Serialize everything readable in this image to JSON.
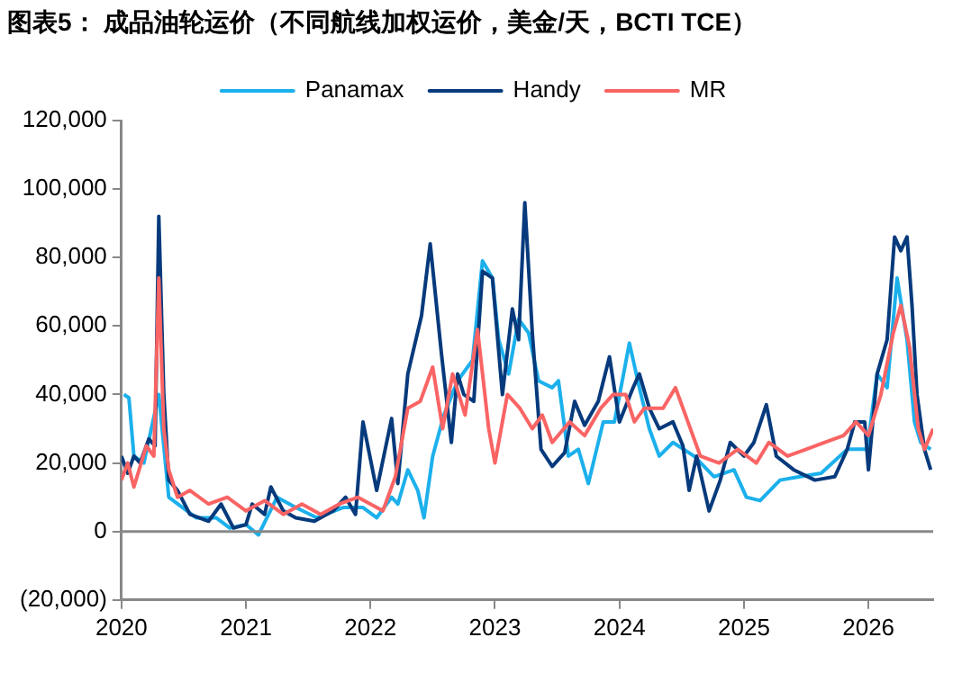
{
  "chart_data": {
    "type": "line",
    "title": "图表5：  成品油轮运价（不同航线加权运价，美金/天，BCTI TCE）",
    "xlim": [
      2020,
      2026.52
    ],
    "xticks": [
      2020,
      2021,
      2022,
      2023,
      2024,
      2025,
      2026
    ],
    "ylim": [
      -20000,
      120000
    ],
    "yticks": [
      {
        "value": -20000,
        "label": "(20,000)"
      },
      {
        "value": 0,
        "label": "0"
      },
      {
        "value": 20000,
        "label": "20,000"
      },
      {
        "value": 40000,
        "label": "40,000"
      },
      {
        "value": 60000,
        "label": "60,000"
      },
      {
        "value": 80000,
        "label": "80,000"
      },
      {
        "value": 100000,
        "label": "100,000"
      },
      {
        "value": 120000,
        "label": "120,000"
      }
    ],
    "grid": false,
    "ref_lines": [
      {
        "axis": "y",
        "value": 0
      }
    ],
    "legend": "top",
    "marker": "none",
    "line_style": "solid",
    "series": [
      {
        "name": "Panamax",
        "color": "#1cb0ec",
        "x": [
          2020.02,
          2020.06,
          2020.1,
          2020.18,
          2020.3,
          2020.38,
          2020.6,
          2020.76,
          2020.87,
          2021.0,
          2021.1,
          2021.25,
          2021.4,
          2021.57,
          2021.78,
          2021.94,
          2022.05,
          2022.17,
          2022.22,
          2022.3,
          2022.38,
          2022.43,
          2022.5,
          2022.59,
          2022.7,
          2022.82,
          2022.9,
          2022.98,
          2023.03,
          2023.11,
          2023.19,
          2023.27,
          2023.35,
          2023.46,
          2023.51,
          2023.59,
          2023.67,
          2023.75,
          2023.87,
          2023.96,
          2024.08,
          2024.16,
          2024.24,
          2024.32,
          2024.43,
          2024.6,
          2024.76,
          2024.92,
          2025.02,
          2025.13,
          2025.29,
          2025.45,
          2025.62,
          2025.83,
          2025.99,
          2026.07,
          2026.15,
          2026.23,
          2026.31,
          2026.37,
          2026.42,
          2026.5
        ],
        "values": [
          40000,
          39000,
          22000,
          20000,
          40000,
          10000,
          4000,
          4000,
          1000,
          2000,
          -1000,
          10000,
          7000,
          4000,
          7000,
          7000,
          4000,
          10000,
          8000,
          18000,
          12000,
          4000,
          22000,
          34000,
          44000,
          50000,
          79000,
          74000,
          56000,
          46000,
          62000,
          58000,
          44000,
          42000,
          44000,
          22000,
          24000,
          14000,
          32000,
          32000,
          55000,
          42000,
          30000,
          22000,
          26000,
          22000,
          16000,
          18000,
          10000,
          9000,
          15000,
          16000,
          17000,
          24000,
          24000,
          46000,
          42000,
          74000,
          56000,
          32000,
          26000,
          24000
        ]
      },
      {
        "name": "Handy",
        "color": "#063a7c",
        "x": [
          2020.0,
          2020.05,
          2020.1,
          2020.15,
          2020.22,
          2020.27,
          2020.3,
          2020.34,
          2020.38,
          2020.45,
          2020.55,
          2020.7,
          2020.8,
          2020.9,
          2021.0,
          2021.05,
          2021.15,
          2021.2,
          2021.3,
          2021.4,
          2021.55,
          2021.7,
          2021.8,
          2021.88,
          2021.94,
          2022.05,
          2022.17,
          2022.22,
          2022.3,
          2022.41,
          2022.48,
          2022.57,
          2022.65,
          2022.7,
          2022.75,
          2022.83,
          2022.9,
          2022.98,
          2023.06,
          2023.14,
          2023.19,
          2023.24,
          2023.3,
          2023.37,
          2023.46,
          2023.56,
          2023.64,
          2023.72,
          2023.83,
          2023.92,
          2024.0,
          2024.11,
          2024.16,
          2024.24,
          2024.32,
          2024.43,
          2024.51,
          2024.56,
          2024.62,
          2024.72,
          2024.81,
          2024.89,
          2025.0,
          2025.08,
          2025.18,
          2025.26,
          2025.4,
          2025.57,
          2025.73,
          2025.83,
          2025.89,
          2025.97,
          2026.0,
          2026.07,
          2026.15,
          2026.21,
          2026.26,
          2026.31,
          2026.35,
          2026.39,
          2026.45,
          2026.5
        ],
        "values": [
          22000,
          17000,
          22000,
          20000,
          27000,
          25000,
          92000,
          40000,
          15000,
          12000,
          5000,
          3000,
          8000,
          1000,
          2000,
          8000,
          5000,
          13000,
          6000,
          4000,
          3000,
          6000,
          10000,
          5000,
          32000,
          12000,
          33000,
          14000,
          46000,
          63000,
          84000,
          52000,
          26000,
          46000,
          40000,
          38000,
          76000,
          74000,
          40000,
          65000,
          56000,
          96000,
          58000,
          24000,
          19000,
          23000,
          38000,
          31000,
          38000,
          51000,
          32000,
          42000,
          46000,
          36000,
          30000,
          32000,
          25000,
          12000,
          22000,
          6000,
          15000,
          26000,
          22000,
          26000,
          37000,
          22000,
          18000,
          15000,
          16000,
          24000,
          32000,
          32000,
          18000,
          46000,
          56000,
          86000,
          82000,
          86000,
          66000,
          40000,
          24000,
          18000
        ]
      },
      {
        "name": "MR",
        "color": "#fa6464",
        "x": [
          2020.0,
          2020.05,
          2020.1,
          2020.2,
          2020.26,
          2020.3,
          2020.34,
          2020.38,
          2020.45,
          2020.55,
          2020.7,
          2020.85,
          2021.0,
          2021.15,
          2021.3,
          2021.45,
          2021.6,
          2021.75,
          2021.9,
          2022.0,
          2022.1,
          2022.2,
          2022.3,
          2022.4,
          2022.5,
          2022.58,
          2022.66,
          2022.76,
          2022.86,
          2022.95,
          2023.0,
          2023.1,
          2023.2,
          2023.3,
          2023.38,
          2023.46,
          2023.6,
          2023.72,
          2023.85,
          2023.95,
          2024.05,
          2024.12,
          2024.2,
          2024.35,
          2024.45,
          2024.55,
          2024.65,
          2024.8,
          2024.95,
          2025.1,
          2025.2,
          2025.35,
          2025.5,
          2025.65,
          2025.8,
          2025.9,
          2026.0,
          2026.1,
          2026.2,
          2026.26,
          2026.33,
          2026.4,
          2026.45,
          2026.52
        ],
        "values": [
          15000,
          20000,
          13000,
          25000,
          22000,
          74000,
          30000,
          18000,
          10000,
          12000,
          8000,
          10000,
          6000,
          9000,
          5000,
          8000,
          5000,
          8000,
          10000,
          8000,
          6000,
          16000,
          36000,
          38000,
          48000,
          30000,
          46000,
          34000,
          59000,
          30000,
          20000,
          40000,
          36000,
          30000,
          34000,
          26000,
          32000,
          28000,
          36000,
          40000,
          40000,
          32000,
          36000,
          36000,
          42000,
          32000,
          22000,
          20000,
          24000,
          20000,
          26000,
          22000,
          24000,
          26000,
          28000,
          32000,
          28000,
          40000,
          58000,
          66000,
          54000,
          30000,
          24000,
          30000
        ]
      }
    ]
  }
}
